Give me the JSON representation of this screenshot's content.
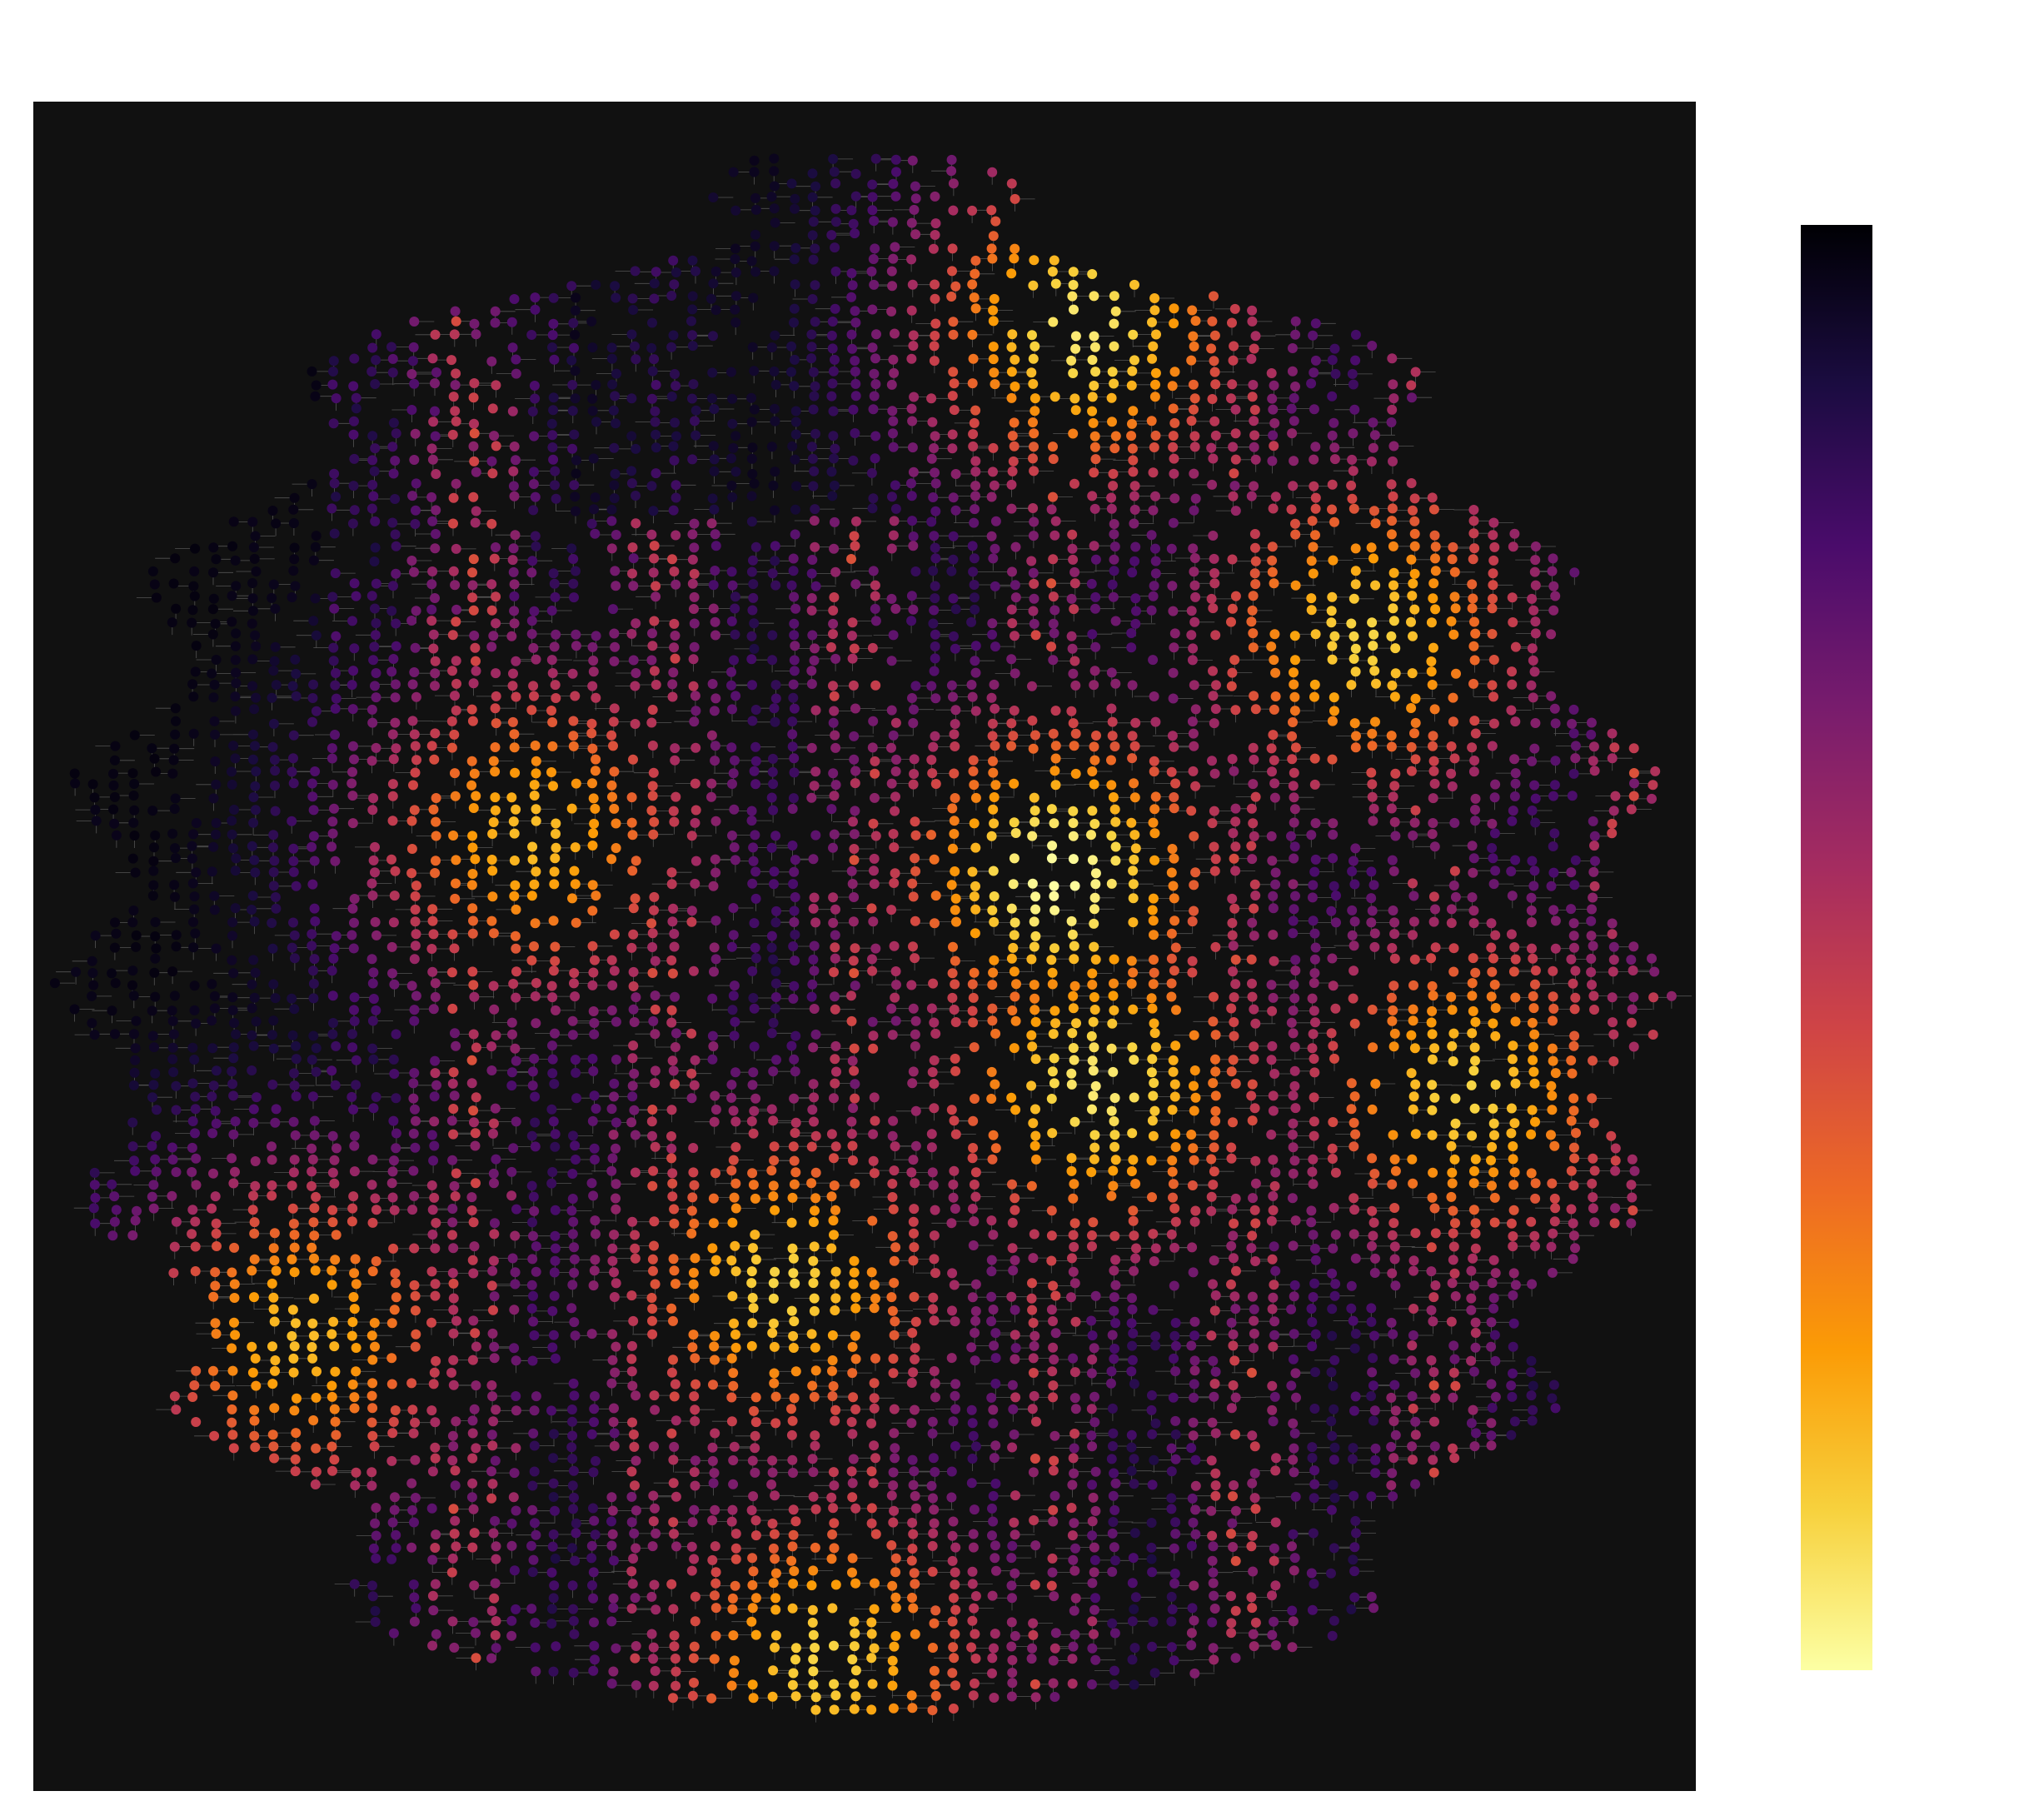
{
  "map": {
    "type": "street-network-node-centrality",
    "background_color": "#111111",
    "edge_color": "#8a8a8a",
    "node_color_scale": "inferno",
    "extent_shape": "circle",
    "hotspots": [
      {
        "area": "north-center",
        "level": 0.95
      },
      {
        "area": "northeast",
        "level": 0.9
      },
      {
        "area": "west-center",
        "level": 0.85
      },
      {
        "area": "center",
        "level": 1.0
      },
      {
        "area": "center-south",
        "level": 0.95
      },
      {
        "area": "east",
        "level": 0.9
      },
      {
        "area": "southwest",
        "level": 0.85
      },
      {
        "area": "south-center",
        "level": 0.9
      },
      {
        "area": "south",
        "level": 0.9
      }
    ]
  },
  "colorbar": {
    "orientation": "vertical",
    "colormap": "inferno",
    "top_color": "#000004",
    "bottom_color": "#fcffa4",
    "stops": [
      "#000004",
      "#1b0c41",
      "#4a0c6b",
      "#781c6d",
      "#a52c60",
      "#cf4446",
      "#ed6925",
      "#fb9b06",
      "#f7d13d",
      "#fcffa4"
    ]
  }
}
